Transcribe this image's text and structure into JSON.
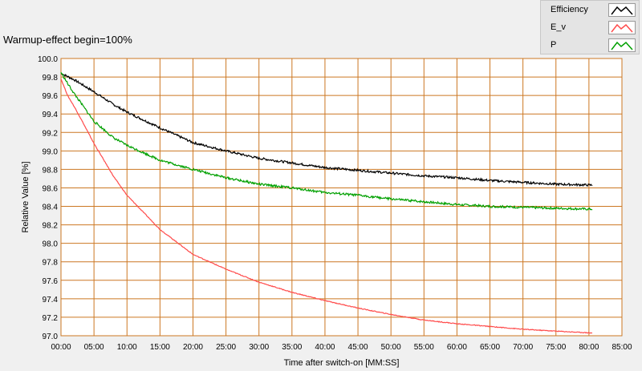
{
  "chart_data": {
    "type": "line",
    "title": "Warmup-effect begin=100%",
    "xlabel": "Time after switch-on [MM:SS]",
    "ylabel": "Relative Value [%]",
    "x_unit": "minutes",
    "xlim": [
      0,
      85
    ],
    "ylim": [
      97.0,
      100.0
    ],
    "x_ticks": [
      "00:00",
      "05:00",
      "10:00",
      "15:00",
      "20:00",
      "25:00",
      "30:00",
      "35:00",
      "40:00",
      "45:00",
      "50:00",
      "55:00",
      "60:00",
      "65:00",
      "70:00",
      "75:00",
      "80:00",
      "85:00"
    ],
    "y_ticks": [
      "100.0",
      "99.8",
      "99.6",
      "99.4",
      "99.2",
      "99.0",
      "98.8",
      "98.6",
      "98.4",
      "98.2",
      "98.0",
      "97.8",
      "97.6",
      "97.4",
      "97.2",
      "97.0"
    ],
    "grid": true,
    "legend_position": "top-right",
    "series": [
      {
        "name": "Efficiency",
        "color": "#000000",
        "x": [
          0,
          2,
          5,
          8,
          10,
          15,
          20,
          25,
          30,
          35,
          40,
          45,
          50,
          55,
          60,
          65,
          70,
          75,
          80.5
        ],
        "y": [
          99.84,
          99.77,
          99.64,
          99.5,
          99.42,
          99.25,
          99.09,
          99.0,
          98.92,
          98.87,
          98.82,
          98.79,
          98.76,
          98.73,
          98.71,
          98.68,
          98.66,
          98.64,
          98.63
        ]
      },
      {
        "name": "E_v",
        "color": "#ff4b4b",
        "x": [
          0,
          1,
          2,
          3,
          5,
          8,
          10,
          15,
          20,
          25,
          30,
          35,
          40,
          45,
          50,
          55,
          60,
          65,
          70,
          75,
          80.5
        ],
        "y": [
          99.78,
          99.6,
          99.48,
          99.35,
          99.08,
          98.72,
          98.52,
          98.15,
          97.88,
          97.72,
          97.58,
          97.47,
          97.38,
          97.3,
          97.23,
          97.17,
          97.13,
          97.1,
          97.07,
          97.05,
          97.03
        ]
      },
      {
        "name": "P",
        "color": "#00a000",
        "x": [
          0,
          1,
          2,
          3,
          5,
          8,
          10,
          15,
          20,
          25,
          30,
          35,
          40,
          45,
          50,
          55,
          60,
          65,
          70,
          75,
          80.5
        ],
        "y": [
          99.85,
          99.73,
          99.62,
          99.52,
          99.32,
          99.14,
          99.06,
          98.9,
          98.8,
          98.71,
          98.64,
          98.6,
          98.55,
          98.52,
          98.48,
          98.45,
          98.42,
          98.4,
          98.39,
          98.38,
          98.37
        ]
      }
    ]
  }
}
